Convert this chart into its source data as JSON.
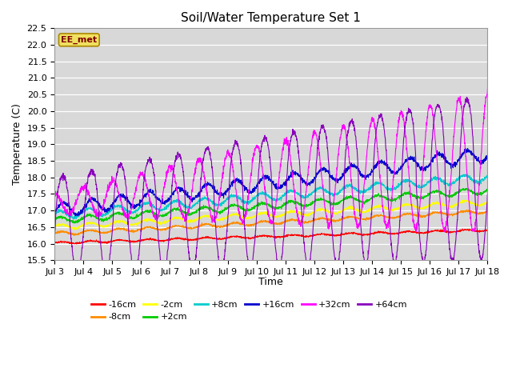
{
  "title": "Soil/Water Temperature Set 1",
  "ylabel": "Temperature (C)",
  "xlabel": "Time",
  "annotation": "EE_met",
  "ylim": [
    15.5,
    22.5
  ],
  "yticks": [
    15.5,
    16.0,
    16.5,
    17.0,
    17.5,
    18.0,
    18.5,
    19.0,
    19.5,
    20.0,
    20.5,
    21.0,
    21.5,
    22.0,
    22.5
  ],
  "xtick_positions": [
    3,
    4,
    5,
    6,
    7,
    8,
    9,
    10,
    11,
    12,
    13,
    14,
    15,
    16,
    17,
    18
  ],
  "xtick_labels": [
    "Jul 3",
    "Jul 4",
    "Jul 5",
    "Jul 6",
    "Jul 7",
    "Jul 8",
    "Jul 9",
    "Jul 10",
    "Jul 11",
    "Jul 12",
    "Jul 13",
    "Jul 14",
    "Jul 15",
    "Jul 16",
    "Jul 17",
    "Jul 18"
  ],
  "colors": {
    "-16cm": "#ff0000",
    "-8cm": "#ff8c00",
    "-2cm": "#ffff00",
    "+2cm": "#00cc00",
    "+8cm": "#00cccc",
    "+16cm": "#0000cc",
    "+32cm": "#ff00ff",
    "+64cm": "#8800bb"
  },
  "bg_color": "#d8d8d8",
  "title_fontsize": 11,
  "axis_fontsize": 9,
  "tick_fontsize": 8,
  "legend_fontsize": 8
}
